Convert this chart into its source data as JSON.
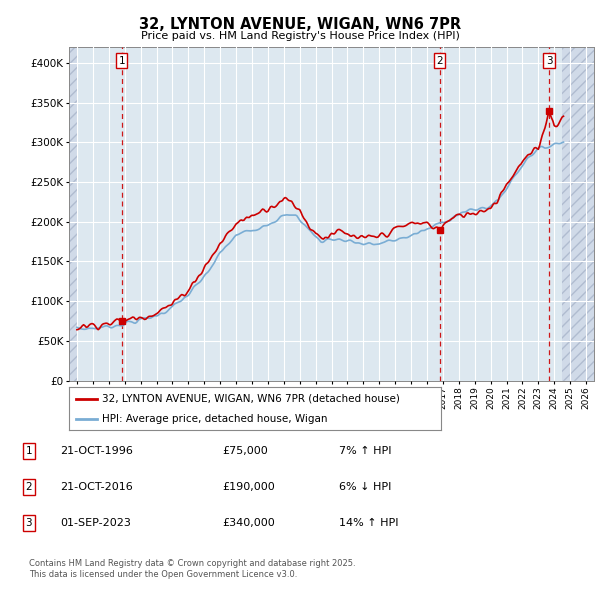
{
  "title": "32, LYNTON AVENUE, WIGAN, WN6 7PR",
  "subtitle": "Price paid vs. HM Land Registry's House Price Index (HPI)",
  "xlim": [
    1993.5,
    2026.5
  ],
  "ylim": [
    0,
    420000
  ],
  "yticks": [
    0,
    50000,
    100000,
    150000,
    200000,
    250000,
    300000,
    350000,
    400000
  ],
  "ytick_labels": [
    "£0",
    "£50K",
    "£100K",
    "£150K",
    "£200K",
    "£250K",
    "£300K",
    "£350K",
    "£400K"
  ],
  "sale_dates": [
    1996.81,
    2016.81,
    2023.67
  ],
  "sale_prices": [
    75000,
    190000,
    340000
  ],
  "sale_labels": [
    "1",
    "2",
    "3"
  ],
  "hpi_line_color": "#7aadd4",
  "sale_line_color": "#cc0000",
  "background_color": "#ffffff",
  "plot_bg_color": "#dde8f0",
  "grid_color": "#ffffff",
  "legend_label_red": "32, LYNTON AVENUE, WIGAN, WN6 7PR (detached house)",
  "legend_label_blue": "HPI: Average price, detached house, Wigan",
  "table_entries": [
    {
      "num": "1",
      "date": "21-OCT-1996",
      "price": "£75,000",
      "pct": "7% ↑ HPI"
    },
    {
      "num": "2",
      "date": "21-OCT-2016",
      "price": "£190,000",
      "pct": "6% ↓ HPI"
    },
    {
      "num": "3",
      "date": "01-SEP-2023",
      "price": "£340,000",
      "pct": "14% ↑ HPI"
    }
  ],
  "footnote": "Contains HM Land Registry data © Crown copyright and database right 2025.\nThis data is licensed under the Open Government Licence v3.0."
}
